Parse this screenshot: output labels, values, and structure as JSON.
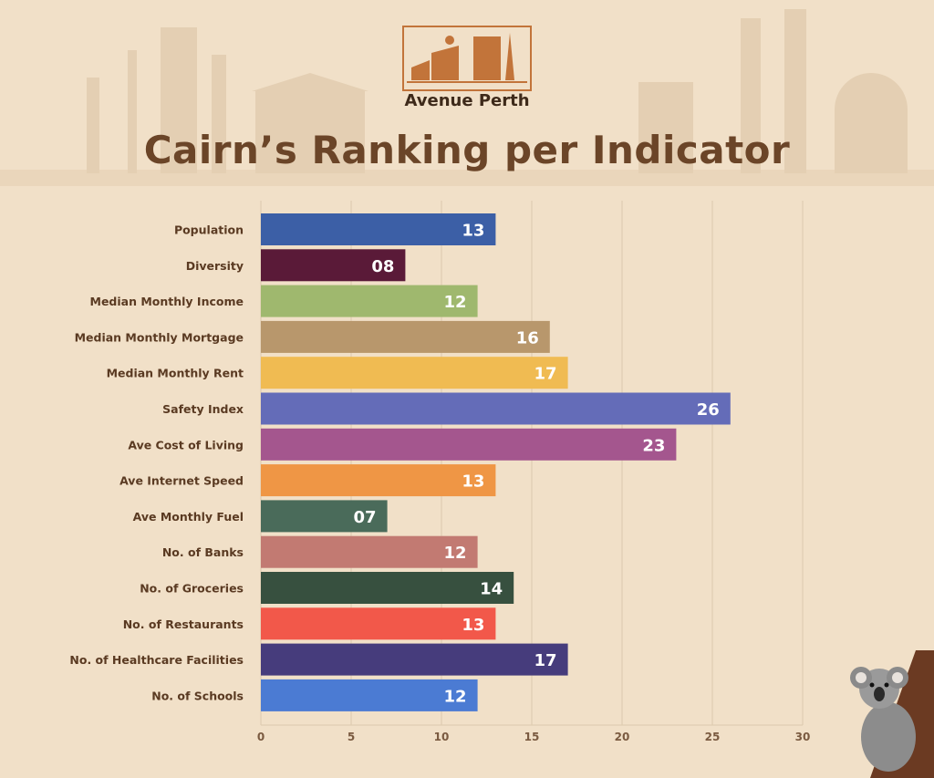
{
  "brand": {
    "name": "Avenue Perth"
  },
  "colors": {
    "background": "#f1e0c8",
    "title": "#6b4528",
    "labels": "#5a3a22",
    "grid": "#dcc9ae"
  },
  "chart_data": {
    "type": "bar",
    "orientation": "horizontal",
    "title": "Cairn’s Ranking per Indicator",
    "xlabel": "",
    "ylabel": "",
    "xlim": [
      0,
      30
    ],
    "xticks": [
      "0",
      "5",
      "10",
      "15",
      "20",
      "25",
      "30"
    ],
    "grid": true,
    "categories": [
      "Population",
      "Diversity",
      "Median Monthly Income",
      "Median Monthly Mortgage",
      "Median Monthly Rent",
      "Safety Index",
      "Ave Cost of Living",
      "Ave Internet Speed",
      "Ave Monthly Fuel",
      "No. of Banks",
      "No. of Groceries",
      "No. of Restaurants",
      "No. of Healthcare Facilities",
      "No. of Schools"
    ],
    "values": [
      13,
      8,
      12,
      16,
      17,
      26,
      23,
      13,
      7,
      12,
      14,
      13,
      17,
      12
    ],
    "value_labels": [
      "13",
      "08",
      "12",
      "16",
      "17",
      "26",
      "23",
      "13",
      "07",
      "12",
      "14",
      "13",
      "17",
      "12"
    ],
    "bar_colors": [
      "#3c5fa6",
      "#5a1a38",
      "#9fb86e",
      "#b8976c",
      "#f0bb52",
      "#646cb8",
      "#a4568e",
      "#ef9645",
      "#4a6b5a",
      "#c27a72",
      "#37503f",
      "#f2584a",
      "#463c7c",
      "#4b7bd3"
    ]
  }
}
